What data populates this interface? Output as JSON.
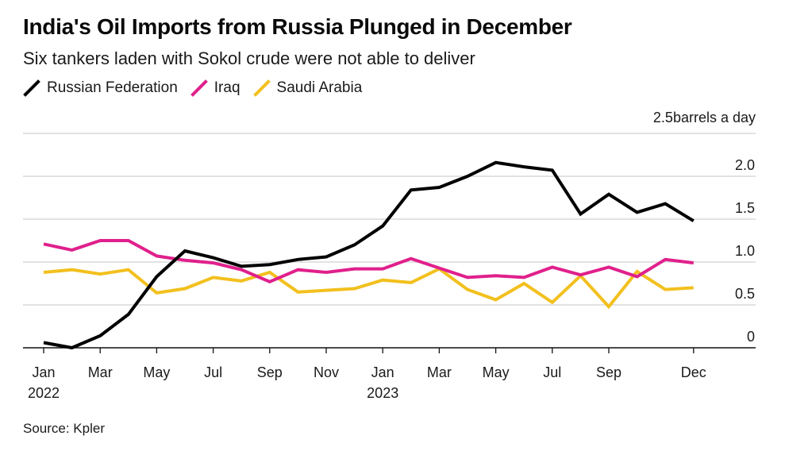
{
  "title": "India's Oil Imports from Russia Plunged in December",
  "subtitle": "Six tankers laden with Sokol crude were not able to deliver",
  "source": "Source: Kpler",
  "chart_data": {
    "type": "line",
    "title": "India's Oil Imports from Russia Plunged in December",
    "subtitle": "Six tankers laden with Sokol crude were not able to deliver",
    "xlabel": "",
    "ylabel": "barrels a day",
    "y_unit_label": "2.5barrels a day",
    "ylim": [
      0,
      2.5
    ],
    "yticks": [
      0,
      0.5,
      1.0,
      1.5,
      2.0,
      2.5
    ],
    "ytick_labels": [
      "0",
      "0.5",
      "1.0",
      "1.5",
      "2.0",
      "2.5"
    ],
    "grid": true,
    "legend_position": "top-left",
    "x": [
      "2022-01",
      "2022-02",
      "2022-03",
      "2022-04",
      "2022-05",
      "2022-06",
      "2022-07",
      "2022-08",
      "2022-09",
      "2022-10",
      "2022-11",
      "2022-12",
      "2023-01",
      "2023-02",
      "2023-03",
      "2023-04",
      "2023-05",
      "2023-06",
      "2023-07",
      "2023-08",
      "2023-09",
      "2023-10",
      "2023-11",
      "2023-12"
    ],
    "xticks": [
      {
        "index": 0,
        "label": "Jan",
        "sublabel": "2022"
      },
      {
        "index": 2,
        "label": "Mar",
        "sublabel": ""
      },
      {
        "index": 4,
        "label": "May",
        "sublabel": ""
      },
      {
        "index": 6,
        "label": "Jul",
        "sublabel": ""
      },
      {
        "index": 8,
        "label": "Sep",
        "sublabel": ""
      },
      {
        "index": 10,
        "label": "Nov",
        "sublabel": ""
      },
      {
        "index": 12,
        "label": "Jan",
        "sublabel": "2023"
      },
      {
        "index": 14,
        "label": "Mar",
        "sublabel": ""
      },
      {
        "index": 16,
        "label": "May",
        "sublabel": ""
      },
      {
        "index": 18,
        "label": "Jul",
        "sublabel": ""
      },
      {
        "index": 20,
        "label": "Sep",
        "sublabel": ""
      },
      {
        "index": 23,
        "label": "Dec",
        "sublabel": ""
      }
    ],
    "series": [
      {
        "name": "Russian Federation",
        "color": "#000000",
        "values": [
          0.06,
          0.0,
          0.14,
          0.39,
          0.83,
          1.13,
          1.05,
          0.95,
          0.97,
          1.03,
          1.06,
          1.2,
          1.42,
          1.84,
          1.87,
          2.0,
          2.16,
          2.11,
          2.07,
          1.56,
          1.79,
          1.58,
          1.68,
          1.48
        ]
      },
      {
        "name": "Iraq",
        "color": "#e0208c",
        "values": [
          1.21,
          1.14,
          1.25,
          1.25,
          1.07,
          1.02,
          0.99,
          0.91,
          0.77,
          0.91,
          0.88,
          0.92,
          0.92,
          1.04,
          0.93,
          0.82,
          0.84,
          0.82,
          0.94,
          0.85,
          0.94,
          0.83,
          1.03,
          0.99
        ]
      },
      {
        "name": "Saudi Arabia",
        "color": "#f2c01e",
        "values": [
          0.88,
          0.91,
          0.86,
          0.91,
          0.64,
          0.69,
          0.82,
          0.78,
          0.88,
          0.65,
          0.67,
          0.69,
          0.79,
          0.76,
          0.92,
          0.68,
          0.56,
          0.75,
          0.53,
          0.84,
          0.48,
          0.89,
          0.68,
          0.7
        ]
      }
    ]
  }
}
